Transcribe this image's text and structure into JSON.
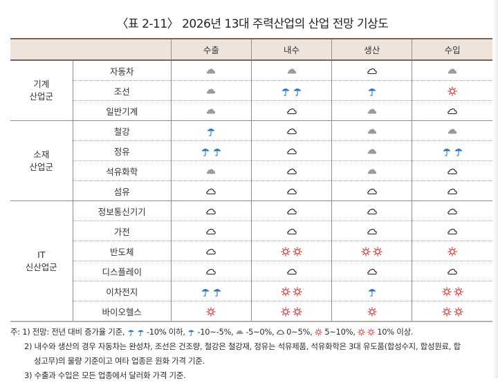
{
  "title": "〈표 2-11〉 2026년 13대 주력산업의 산업 전망 기상도",
  "colors": {
    "header_bg": "#efe4dc",
    "header_border": "#7c6258",
    "umbrella": "#2e78c7",
    "sun": "#d83a3a",
    "cloud_filled": "#9b9b9b",
    "cloud_outline": "#222222"
  },
  "icon_legend": {
    "umbrella2": "-10% 이하",
    "umbrella1": "-10~-5%",
    "cloud_filled": "-5~0%",
    "cloud_outline": "0~5%",
    "sun1": "5~10%",
    "sun2": "10% 이상"
  },
  "table": {
    "columns": [
      "수출",
      "내수",
      "생산",
      "수입"
    ],
    "groups": [
      {
        "label_line1": "기계",
        "label_line2": "산업군",
        "rows": [
          {
            "item": "자동차",
            "values": [
              "cloud_filled",
              "cloud_filled",
              "cloud_outline",
              "cloud_filled"
            ]
          },
          {
            "item": "조선",
            "values": [
              "cloud_filled",
              "umbrella2",
              "umbrella1",
              "sun1"
            ]
          },
          {
            "item": "일반기계",
            "values": [
              "cloud_filled",
              "cloud_outline",
              "cloud_filled",
              "cloud_outline"
            ]
          }
        ]
      },
      {
        "label_line1": "소재",
        "label_line2": "산업군",
        "rows": [
          {
            "item": "철강",
            "values": [
              "umbrella1",
              "cloud_outline",
              "cloud_filled",
              "cloud_filled"
            ]
          },
          {
            "item": "정유",
            "values": [
              "umbrella2",
              "cloud_outline",
              "cloud_filled",
              "umbrella2"
            ]
          },
          {
            "item": "석유화학",
            "values": [
              "cloud_filled",
              "cloud_outline",
              "cloud_filled",
              "cloud_outline"
            ]
          },
          {
            "item": "섬유",
            "values": [
              "cloud_outline",
              "cloud_outline",
              "cloud_outline",
              "cloud_outline"
            ]
          }
        ]
      },
      {
        "label_line1": "IT",
        "label_line2": "신산업군",
        "rows": [
          {
            "item": "정보통신기기",
            "values": [
              "cloud_outline",
              "cloud_outline",
              "cloud_outline",
              "cloud_outline"
            ]
          },
          {
            "item": "가전",
            "values": [
              "cloud_outline",
              "cloud_outline",
              "cloud_outline",
              "cloud_outline"
            ]
          },
          {
            "item": "반도체",
            "values": [
              "cloud_outline",
              "sun2",
              "sun2",
              "sun1"
            ]
          },
          {
            "item": "디스플레이",
            "values": [
              "cloud_outline",
              "cloud_outline",
              "cloud_outline",
              "cloud_outline"
            ]
          },
          {
            "item": "이차전지",
            "values": [
              "umbrella2",
              "sun2",
              "umbrella1",
              "sun2"
            ]
          },
          {
            "item": "바이오헬스",
            "values": [
              "sun1",
              "sun2",
              "sun1",
              "sun2"
            ]
          }
        ]
      }
    ]
  },
  "footnotes": {
    "note1_prefix": "주: 1) 전망: 전년 대비 증가율 기준, ",
    "note1_u2": " -10% 이하, ",
    "note1_u1": " -10~-5%, ",
    "note1_cf": " -5~0%, ",
    "note1_co": " 0~5%, ",
    "note1_s1": " 5~10%, ",
    "note1_s2": " 10% 이상.",
    "note2_line1": "2) 내수와 생산의 경우 자동차는 완성차, 조선은 건조량, 철강은 철강재, 정유는 석유제품, 석유화학은 3대 유도품(합성수지, 합성원료, 합",
    "note2_line2": "성고무)의 물량 기준이고 여타 업종은 원화 가격 기준.",
    "note3": "3) 수출과 수입은 모든 업종에서 달러화 가격 기준."
  }
}
